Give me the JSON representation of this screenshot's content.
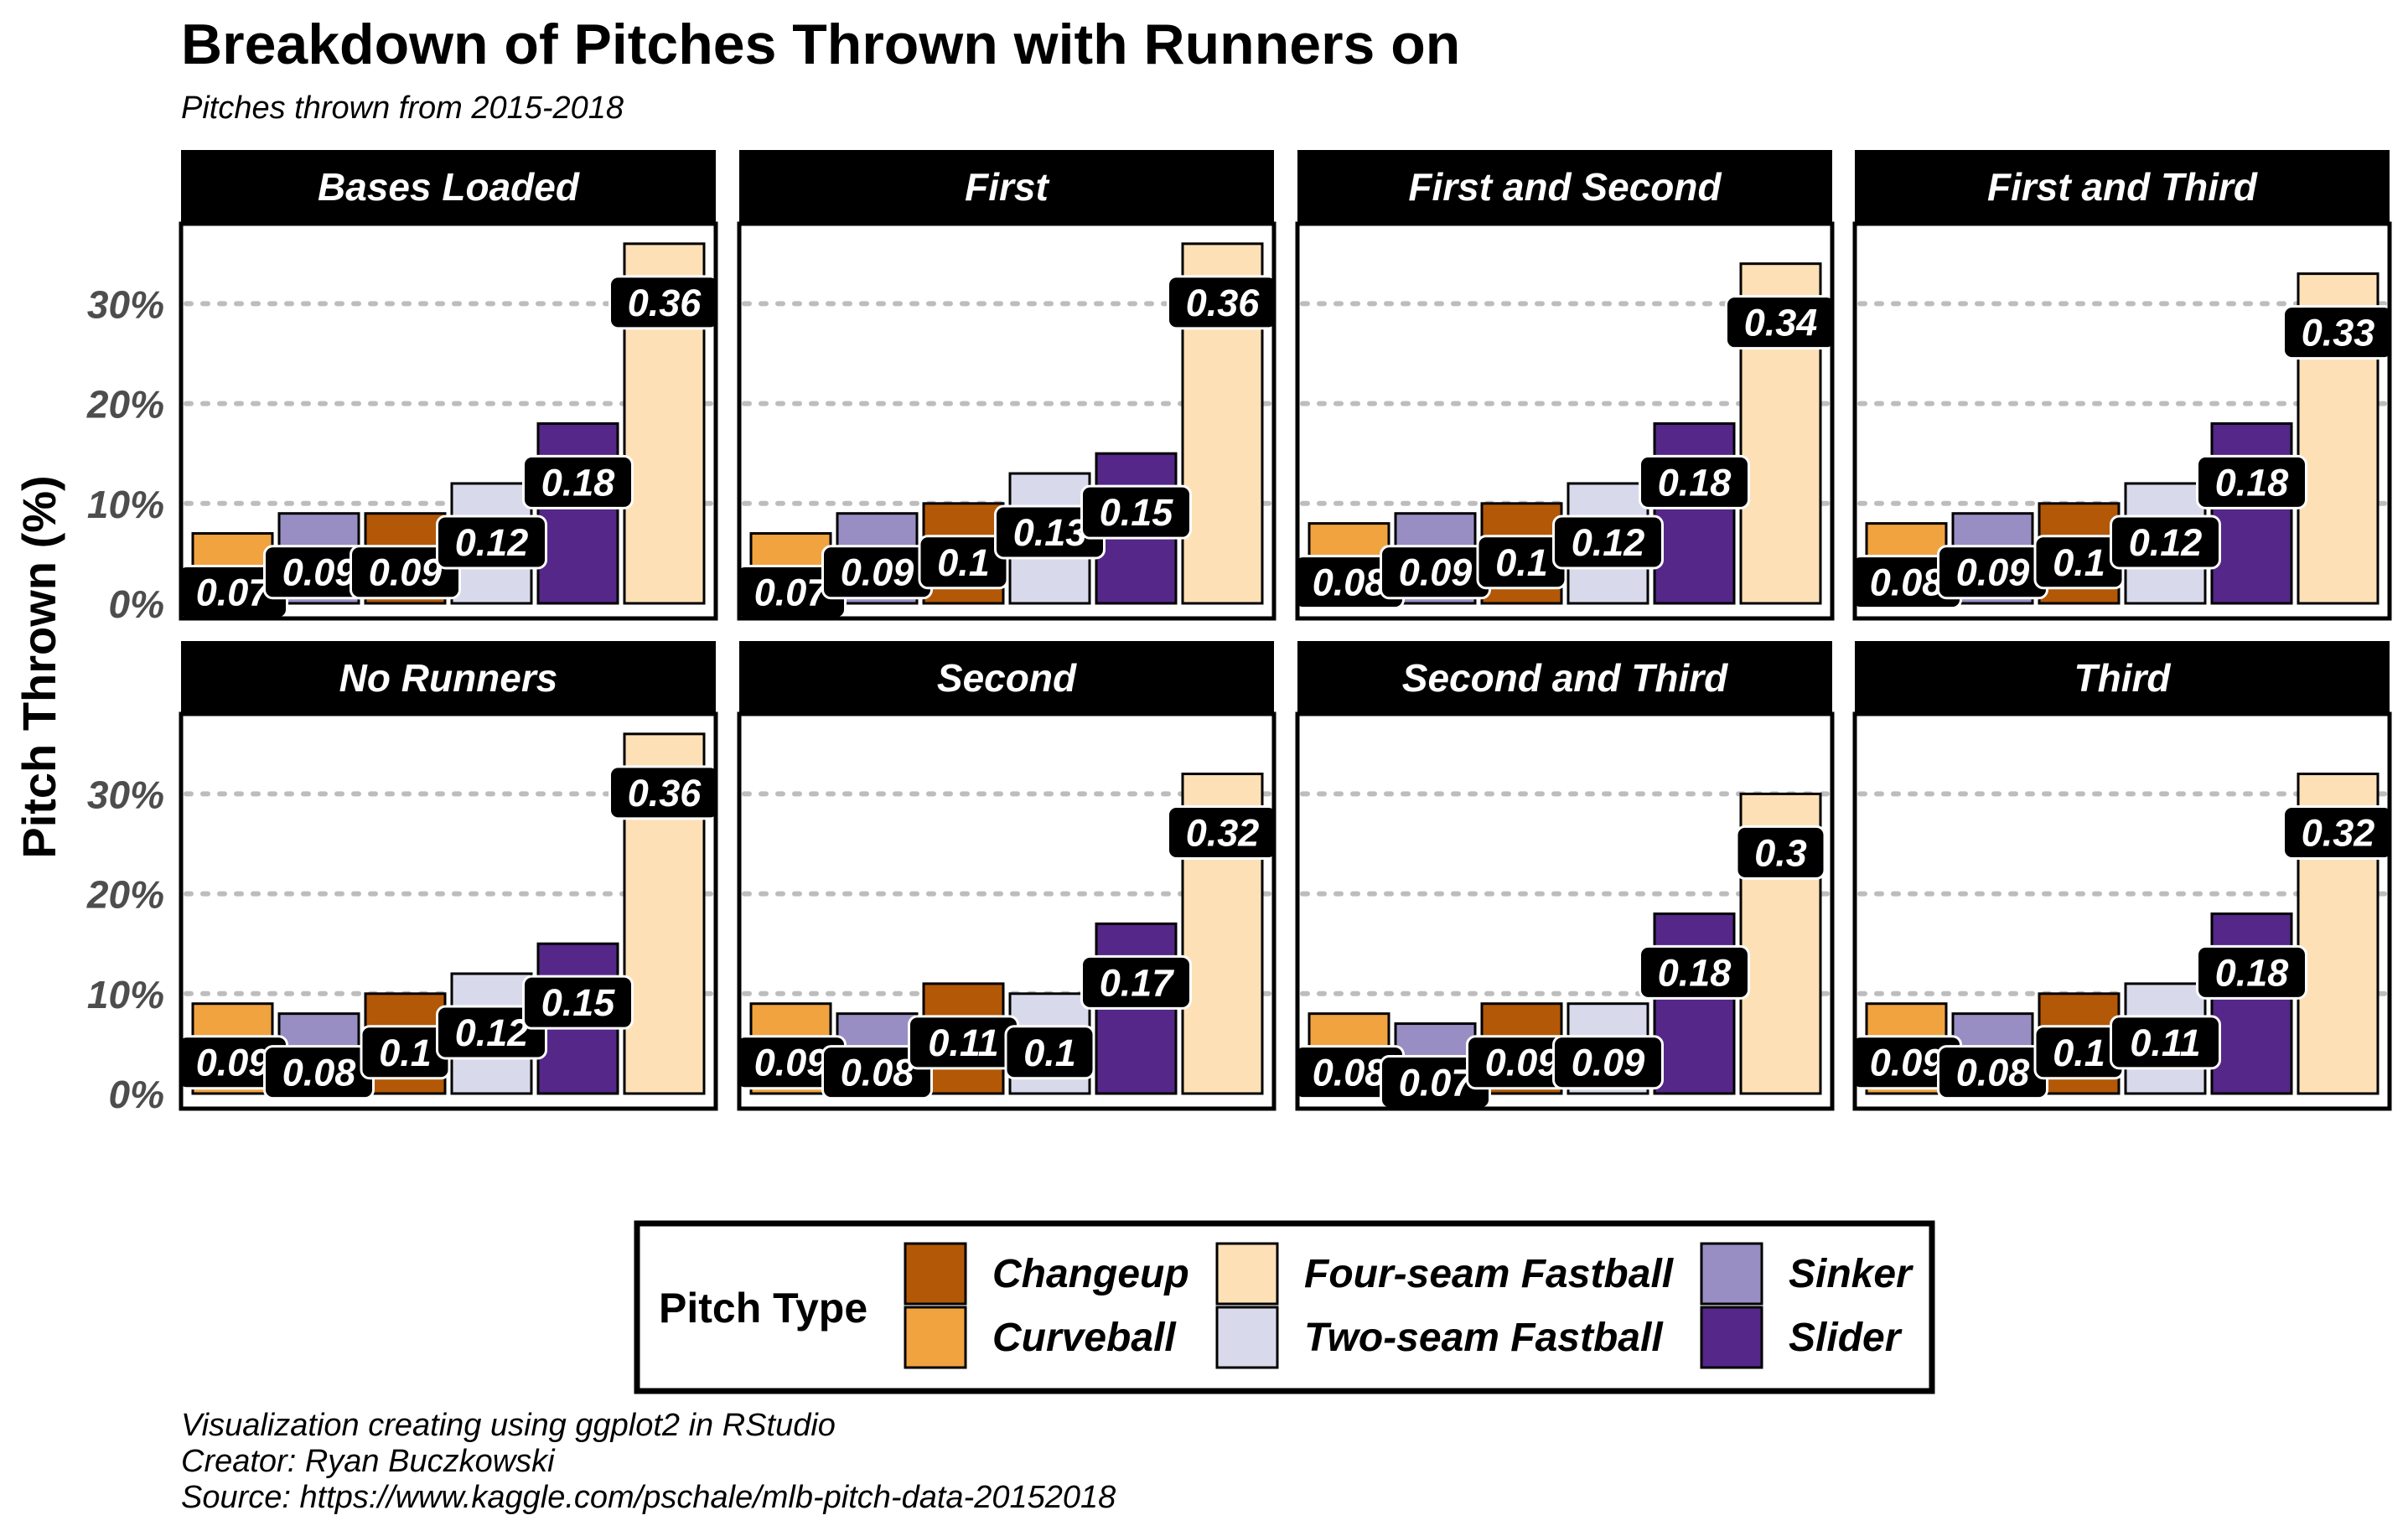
{
  "chart_data": {
    "type": "bar",
    "facet": "small-multiples",
    "title": "Breakdown of Pitches Thrown with Runners on",
    "subtitle": "Pitches thrown from 2015-2018",
    "ylabel": "Pitch Thrown (%)",
    "xlabel": "",
    "ylim": [
      0,
      0.38
    ],
    "yticks": [
      0,
      0.1,
      0.2,
      0.3
    ],
    "ytick_labels": [
      "0%",
      "10%",
      "20%",
      "30%"
    ],
    "grid": "horizontal dotted major",
    "categories": [
      "Curveball",
      "Sinker",
      "Changeup",
      "Two-seam Fastball",
      "Slider",
      "Four-seam Fastball"
    ],
    "colors": {
      "Changeup": "#b35806",
      "Curveball": "#f1a340",
      "Four-seam Fastball": "#fee0b6",
      "Two-seam Fastball": "#d8daeb",
      "Sinker": "#998ec3",
      "Slider": "#542788"
    },
    "legend": {
      "title": "Pitch Type",
      "placement": "bottom",
      "entries": [
        "Changeup",
        "Curveball",
        "Four-seam Fastball",
        "Two-seam Fastball",
        "Sinker",
        "Slider"
      ]
    },
    "panels": [
      {
        "name": "Bases Loaded",
        "values": [
          0.07,
          0.09,
          0.09,
          0.12,
          0.18,
          0.36
        ],
        "labels": [
          "0.07",
          "0.09",
          "0.09",
          "0.12",
          "0.18",
          "0.36"
        ]
      },
      {
        "name": "First",
        "values": [
          0.07,
          0.09,
          0.1,
          0.13,
          0.15,
          0.36
        ],
        "labels": [
          "0.07",
          "0.09",
          "0.1",
          "0.13",
          "0.15",
          "0.36"
        ]
      },
      {
        "name": "First and Second",
        "values": [
          0.08,
          0.09,
          0.1,
          0.12,
          0.18,
          0.34
        ],
        "labels": [
          "0.08",
          "0.09",
          "0.1",
          "0.12",
          "0.18",
          "0.34"
        ]
      },
      {
        "name": "First and Third",
        "values": [
          0.08,
          0.09,
          0.1,
          0.12,
          0.18,
          0.33
        ],
        "labels": [
          "0.08",
          "0.09",
          "0.1",
          "0.12",
          "0.18",
          "0.33"
        ]
      },
      {
        "name": "No Runners",
        "values": [
          0.09,
          0.08,
          0.1,
          0.12,
          0.15,
          0.36
        ],
        "labels": [
          "0.09",
          "0.08",
          "0.1",
          "0.12",
          "0.15",
          "0.36"
        ]
      },
      {
        "name": "Second",
        "values": [
          0.09,
          0.08,
          0.11,
          0.1,
          0.17,
          0.32
        ],
        "labels": [
          "0.09",
          "0.08",
          "0.11",
          "0.1",
          "0.17",
          "0.32"
        ]
      },
      {
        "name": "Second and Third",
        "values": [
          0.08,
          0.07,
          0.09,
          0.09,
          0.18,
          0.3
        ],
        "labels": [
          "0.08",
          "0.07",
          "0.09",
          "0.09",
          "0.18",
          "0.3"
        ]
      },
      {
        "name": "Third",
        "values": [
          0.09,
          0.08,
          0.1,
          0.11,
          0.18,
          0.32
        ],
        "labels": [
          "0.09",
          "0.08",
          "0.1",
          "0.11",
          "0.18",
          "0.32"
        ]
      }
    ]
  },
  "captions": [
    "Visualization creating using ggplot2 in RStudio",
    "Creator: Ryan Buczkowski",
    "Source: https://www.kaggle.com/pschale/mlb-pitch-data-20152018"
  ]
}
